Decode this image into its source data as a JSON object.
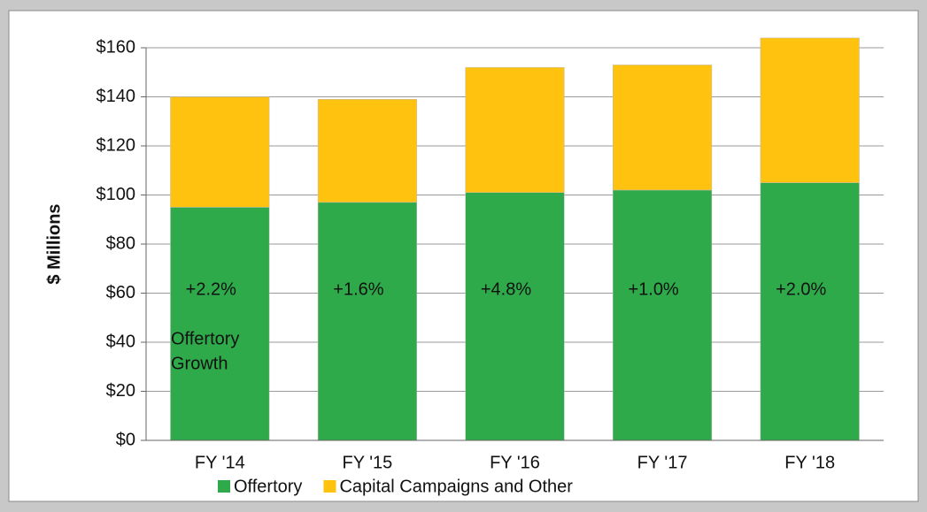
{
  "chart_data": {
    "type": "stacked_bar",
    "y_label": "$ Millions",
    "categories": [
      "FY '14",
      "FY '15",
      "FY '16",
      "FY '17",
      "FY '18"
    ],
    "series": [
      {
        "name": "Offertory",
        "color": "#2eaa4a",
        "values": [
          95,
          97,
          101,
          102,
          105
        ]
      },
      {
        "name": "Capital Campaigns and Other",
        "color": "#ffc20e",
        "values": [
          45,
          42,
          51,
          51,
          59
        ]
      }
    ],
    "growth_labels": [
      "+2.2%",
      "+1.6%",
      "+4.8%",
      "+1.0%",
      "+2.0%"
    ],
    "growth_caption": [
      "Offertory",
      "Growth"
    ],
    "ylim": [
      0,
      160
    ],
    "yticks": [
      {
        "value": 0,
        "label": "$0"
      },
      {
        "value": 20,
        "label": "$20"
      },
      {
        "value": 40,
        "label": "$40"
      },
      {
        "value": 60,
        "label": "$60"
      },
      {
        "value": 80,
        "label": "$80"
      },
      {
        "value": 100,
        "label": "$100"
      },
      {
        "value": 120,
        "label": "$120"
      },
      {
        "value": 140,
        "label": "$140"
      },
      {
        "value": 160,
        "label": "$160"
      }
    ],
    "grid": true,
    "legend": "bottom"
  }
}
